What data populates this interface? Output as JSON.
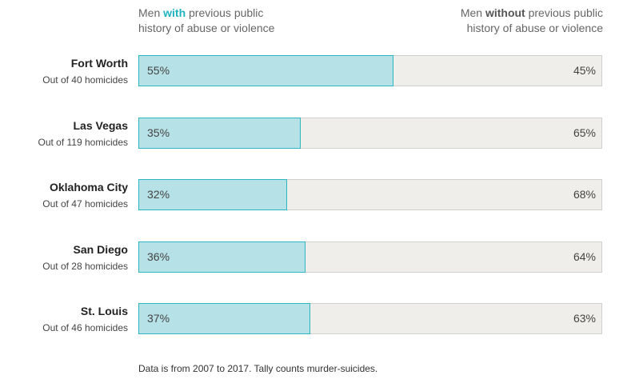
{
  "legend": {
    "with_prefix": "Men ",
    "with_emph": "with",
    "with_rest": " previous public",
    "with_line2": "history of abuse or violence",
    "without_prefix": "Men ",
    "without_emph": "without",
    "without_rest": " previous public",
    "without_line2": "history of abuse or violence"
  },
  "colors": {
    "with_fill": "#b6e1e6",
    "with_border": "#2cb6c0",
    "with_emph": "#1fb3be",
    "without_fill": "#efeeea"
  },
  "chart_data": {
    "type": "bar",
    "stacked": true,
    "orientation": "horizontal",
    "categories": [
      "Fort Worth",
      "Las Vegas",
      "Oklahoma City",
      "San Diego",
      "St. Louis"
    ],
    "subtitles": [
      "Out of 40 homicides",
      "Out of 119 homicides",
      "Out of 47 homicides",
      "Out of 28 homicides",
      "Out of 46 homicides"
    ],
    "series": [
      {
        "name": "Men with previous public history of abuse or violence",
        "values": [
          55,
          35,
          32,
          36,
          37
        ],
        "labels": [
          "55%",
          "35%",
          "32%",
          "36%",
          "37%"
        ]
      },
      {
        "name": "Men without previous public history of abuse or violence",
        "values": [
          45,
          65,
          68,
          64,
          63
        ],
        "labels": [
          "45%",
          "65%",
          "68%",
          "64%",
          "63%"
        ]
      }
    ],
    "xlim": [
      0,
      100
    ]
  },
  "footnote": "Data is from 2007 to 2017. Tally counts murder-suicides."
}
